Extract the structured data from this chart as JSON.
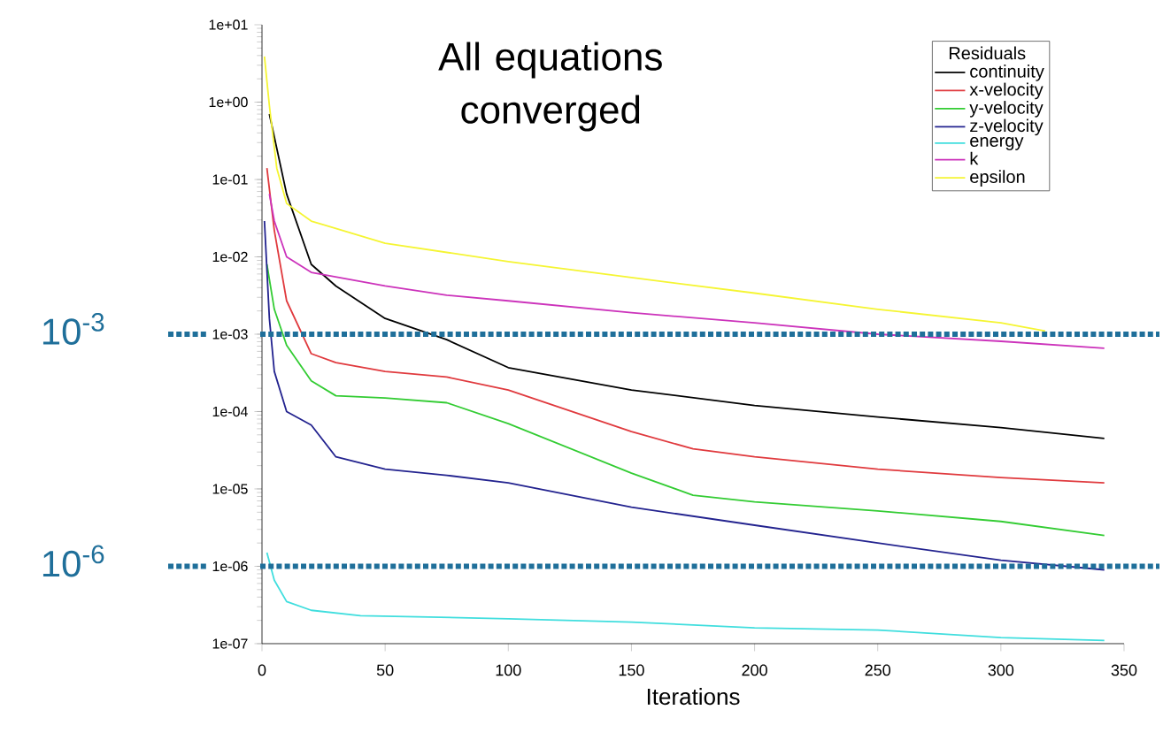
{
  "chart_data": {
    "type": "line",
    "xlabel": "Iterations",
    "legend_title": "Residuals",
    "legend": "top right",
    "log": "y",
    "xlim": [
      0,
      350
    ],
    "xticks": [
      0,
      50,
      100,
      150,
      200,
      250,
      300,
      350
    ],
    "ylim": [
      1e-07,
      10
    ],
    "yticks": [
      {
        "value": 1e-07,
        "label": "1e-07"
      },
      {
        "value": 1e-06,
        "label": "1e-06"
      },
      {
        "value": 1e-05,
        "label": "1e-05"
      },
      {
        "value": 0.0001,
        "label": "1e-04"
      },
      {
        "value": 0.001,
        "label": "1e-03"
      },
      {
        "value": 0.01,
        "label": "1e-02"
      },
      {
        "value": 0.1,
        "label": "1e-01"
      },
      {
        "value": 1,
        "label": "1e+00"
      },
      {
        "value": 10,
        "label": "1e+01"
      }
    ],
    "annotations": [
      "All equations converged",
      "10$^{-3}$",
      "10$^{-6}$"
    ],
    "ref_lines": [
      {
        "axis": "y",
        "value": 0.001,
        "color": "#1f6f9a",
        "line_style": "dotted"
      },
      {
        "axis": "y",
        "value": 1e-06,
        "color": "#1f6f9a",
        "line_style": "dotted"
      }
    ],
    "series": [
      {
        "name": "continuity",
        "color": "#000000",
        "x": [
          3,
          10,
          20,
          30,
          50,
          75,
          100,
          150,
          200,
          250,
          300,
          342
        ],
        "values": [
          0.7,
          0.065,
          0.008,
          0.0042,
          0.0016,
          0.00085,
          0.00037,
          0.00019,
          0.00012,
          8.5e-05,
          6.2e-05,
          4.5e-05
        ]
      },
      {
        "name": "x-velocity",
        "color": "#e03a3e",
        "x": [
          2,
          5,
          10,
          20,
          30,
          50,
          75,
          100,
          150,
          175,
          200,
          250,
          300,
          342
        ],
        "values": [
          0.14,
          0.022,
          0.0027,
          0.00056,
          0.00043,
          0.00033,
          0.00028,
          0.00019,
          5.5e-05,
          3.3e-05,
          2.6e-05,
          1.8e-05,
          1.4e-05,
          1.2e-05
        ]
      },
      {
        "name": "y-velocity",
        "color": "#33cc33",
        "x": [
          2,
          5,
          10,
          20,
          30,
          50,
          75,
          100,
          150,
          175,
          200,
          250,
          300,
          342
        ],
        "values": [
          0.008,
          0.0021,
          0.00072,
          0.00025,
          0.00016,
          0.00015,
          0.00013,
          7e-05,
          1.6e-05,
          8.3e-06,
          6.8e-06,
          5.2e-06,
          3.8e-06,
          2.5e-06
        ]
      },
      {
        "name": "z-velocity",
        "color": "#23238f",
        "x": [
          1,
          3,
          5,
          10,
          20,
          30,
          50,
          75,
          100,
          150,
          200,
          250,
          300,
          342
        ],
        "values": [
          0.029,
          0.0016,
          0.00033,
          0.0001,
          6.7e-05,
          2.6e-05,
          1.8e-05,
          1.5e-05,
          1.2e-05,
          5.8e-06,
          3.4e-06,
          2e-06,
          1.2e-06,
          9e-07
        ]
      },
      {
        "name": "energy",
        "color": "#40dede",
        "x": [
          2,
          5,
          10,
          20,
          40,
          100,
          150,
          200,
          250,
          300,
          342
        ],
        "values": [
          1.5e-06,
          6.6e-07,
          3.5e-07,
          2.7e-07,
          2.3e-07,
          2.1e-07,
          1.9e-07,
          1.6e-07,
          1.5e-07,
          1.2e-07,
          1.1e-07
        ]
      },
      {
        "name": "k",
        "color": "#cc33bb",
        "x": [
          3,
          5,
          10,
          20,
          50,
          75,
          100,
          150,
          200,
          250,
          300,
          342
        ],
        "values": [
          0.065,
          0.029,
          0.01,
          0.0063,
          0.0042,
          0.0032,
          0.0027,
          0.0019,
          0.0014,
          0.001,
          0.00081,
          0.00066
        ]
      },
      {
        "name": "epsilon",
        "color": "#f5f533",
        "x": [
          1,
          3,
          6,
          10,
          20,
          50,
          100,
          150,
          200,
          250,
          300,
          318
        ],
        "values": [
          3.9,
          0.9,
          0.14,
          0.049,
          0.029,
          0.015,
          0.0087,
          0.0054,
          0.0034,
          0.0021,
          0.0014,
          0.0011
        ]
      }
    ]
  }
}
